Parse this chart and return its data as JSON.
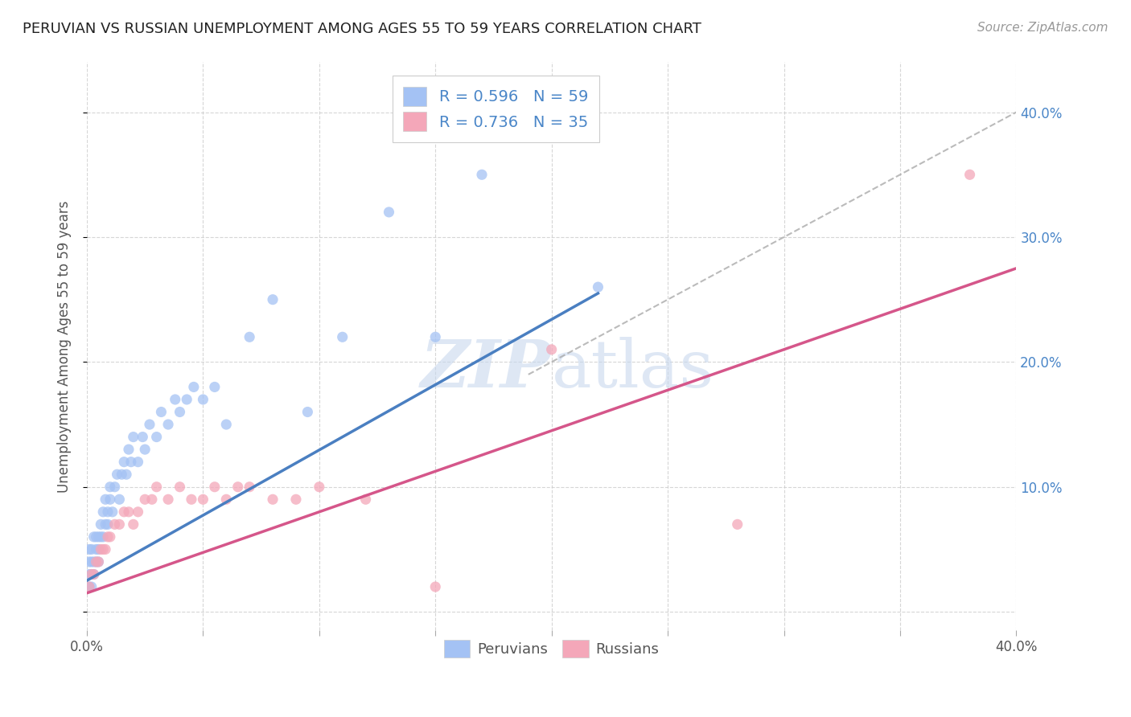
{
  "title": "PERUVIAN VS RUSSIAN UNEMPLOYMENT AMONG AGES 55 TO 59 YEARS CORRELATION CHART",
  "source": "Source: ZipAtlas.com",
  "ylabel": "Unemployment Among Ages 55 to 59 years",
  "xlim": [
    0.0,
    0.4
  ],
  "ylim": [
    -0.015,
    0.44
  ],
  "blue_color": "#a4c2f4",
  "pink_color": "#f4a7b9",
  "blue_line_color": "#4a7fc1",
  "pink_line_color": "#d5568a",
  "dashed_line_color": "#aaaaaa",
  "watermark_color": "#c8d8ee",
  "peruvian_x": [
    0.001,
    0.001,
    0.001,
    0.001,
    0.002,
    0.002,
    0.002,
    0.002,
    0.003,
    0.003,
    0.003,
    0.004,
    0.004,
    0.004,
    0.005,
    0.005,
    0.005,
    0.006,
    0.006,
    0.007,
    0.007,
    0.008,
    0.008,
    0.009,
    0.009,
    0.01,
    0.01,
    0.011,
    0.012,
    0.013,
    0.014,
    0.015,
    0.016,
    0.017,
    0.018,
    0.019,
    0.02,
    0.022,
    0.024,
    0.025,
    0.027,
    0.03,
    0.032,
    0.035,
    0.038,
    0.04,
    0.043,
    0.046,
    0.05,
    0.055,
    0.06,
    0.07,
    0.08,
    0.095,
    0.11,
    0.13,
    0.15,
    0.17,
    0.22
  ],
  "peruvian_y": [
    0.02,
    0.03,
    0.04,
    0.05,
    0.02,
    0.03,
    0.04,
    0.05,
    0.03,
    0.04,
    0.06,
    0.04,
    0.05,
    0.06,
    0.04,
    0.05,
    0.06,
    0.06,
    0.07,
    0.06,
    0.08,
    0.07,
    0.09,
    0.07,
    0.08,
    0.09,
    0.1,
    0.08,
    0.1,
    0.11,
    0.09,
    0.11,
    0.12,
    0.11,
    0.13,
    0.12,
    0.14,
    0.12,
    0.14,
    0.13,
    0.15,
    0.14,
    0.16,
    0.15,
    0.17,
    0.16,
    0.17,
    0.18,
    0.17,
    0.18,
    0.15,
    0.22,
    0.25,
    0.16,
    0.22,
    0.32,
    0.22,
    0.35,
    0.26
  ],
  "russian_x": [
    0.001,
    0.002,
    0.003,
    0.004,
    0.005,
    0.006,
    0.007,
    0.008,
    0.009,
    0.01,
    0.012,
    0.014,
    0.016,
    0.018,
    0.02,
    0.022,
    0.025,
    0.028,
    0.03,
    0.035,
    0.04,
    0.045,
    0.05,
    0.055,
    0.06,
    0.065,
    0.07,
    0.08,
    0.09,
    0.1,
    0.12,
    0.15,
    0.2,
    0.28,
    0.38
  ],
  "russian_y": [
    0.02,
    0.03,
    0.03,
    0.04,
    0.04,
    0.05,
    0.05,
    0.05,
    0.06,
    0.06,
    0.07,
    0.07,
    0.08,
    0.08,
    0.07,
    0.08,
    0.09,
    0.09,
    0.1,
    0.09,
    0.1,
    0.09,
    0.09,
    0.1,
    0.09,
    0.1,
    0.1,
    0.09,
    0.09,
    0.1,
    0.09,
    0.02,
    0.21,
    0.07,
    0.35
  ],
  "blue_line_x": [
    0.0,
    0.22
  ],
  "blue_line_y": [
    0.025,
    0.255
  ],
  "pink_line_x": [
    0.0,
    0.4
  ],
  "pink_line_y": [
    0.015,
    0.275
  ],
  "diag_line_x": [
    0.19,
    0.4
  ],
  "diag_line_y": [
    0.19,
    0.4
  ]
}
